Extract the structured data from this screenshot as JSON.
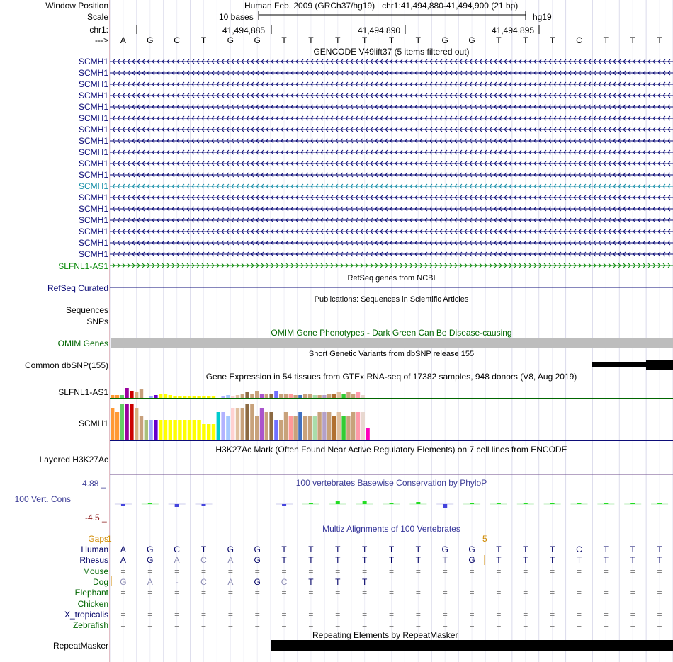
{
  "header": {
    "window_position_label": "Window Position",
    "assembly": "Human Feb. 2009 (GRCh37/hg19)",
    "position": "chr1:41,494,880-41,494,900 (21 bp)",
    "scale_label": "Scale",
    "scale_text": "10 bases",
    "scale_db": "hg19",
    "chrom_label": "chr1:",
    "ticks": [
      "41,494,885",
      "41,494,890",
      "41,494,895"
    ],
    "strand_label": "--->"
  },
  "bases": [
    "A",
    "G",
    "C",
    "T",
    "G",
    "G",
    "T",
    "T",
    "T",
    "T",
    "T",
    "T",
    "G",
    "G",
    "T",
    "T",
    "T",
    "C",
    "T",
    "T",
    "T"
  ],
  "gencode": {
    "title": "GENCODE V49lift37 (5 items filtered out)",
    "genes": [
      "SCMH1",
      "SCMH1",
      "SCMH1",
      "SCMH1",
      "SCMH1",
      "SCMH1",
      "SCMH1",
      "SCMH1",
      "SCMH1",
      "SCMH1",
      "SCMH1",
      "SCMH1",
      "SCMH1",
      "SCMH1",
      "SCMH1",
      "SCMH1",
      "SCMH1",
      "SCMH1"
    ],
    "antisense": "SLFNL1-AS1"
  },
  "refseq": {
    "title": "RefSeq genes from NCBI",
    "label": "RefSeq Curated"
  },
  "pubs": {
    "title": "Publications: Sequences in Scientific Articles",
    "seq_label": "Sequences",
    "snp_label": "SNPs"
  },
  "omim": {
    "title": "OMIM Gene Phenotypes - Dark Green Can Be Disease-causing",
    "label": "OMIM Genes"
  },
  "dbsnp": {
    "title": "Short Genetic Variants from dbSNP release 155",
    "label": "Common dbSNP(155)"
  },
  "gtex": {
    "title": "Gene Expression in 54 tissues from GTEx RNA-seq of 17382 samples, 948 donors (V8, Aug 2019)",
    "genes": [
      {
        "name": "SLFNL1-AS1",
        "values": [
          2,
          2,
          2,
          7,
          5,
          4,
          6,
          0,
          1,
          2,
          3,
          3,
          2,
          1,
          1,
          1,
          1,
          1,
          1,
          1,
          1,
          1,
          0,
          1,
          2,
          1,
          2,
          3,
          4,
          3,
          5,
          3,
          3,
          3,
          5,
          3,
          3,
          3,
          2,
          2,
          3,
          3,
          2,
          2,
          2,
          3,
          3,
          4,
          3,
          4,
          3,
          4,
          2,
          0
        ]
      },
      {
        "name": "SCMH1",
        "values": [
          8,
          7,
          9,
          9,
          9,
          8,
          6,
          5,
          5,
          5,
          5,
          5,
          5,
          5,
          5,
          5,
          5,
          5,
          5,
          4,
          4,
          4,
          7,
          7,
          6,
          8,
          8,
          8,
          9,
          9,
          6,
          8,
          7,
          7,
          5,
          5,
          7,
          6,
          6,
          7,
          6,
          6,
          6,
          7,
          7,
          7,
          6,
          7,
          6,
          6,
          7,
          7,
          7,
          3
        ]
      }
    ]
  },
  "h3k27ac": {
    "title": "H3K27Ac Mark (Often Found Near Active Regulatory Elements) on 7 cell lines from ENCODE",
    "label": "Layered H3K27Ac"
  },
  "cons": {
    "title": "100 vertebrates Basewise Conservation by PhyloP",
    "label": "100 Vert. Cons",
    "max": "4.88 _",
    "min": "-4.5 _",
    "values": [
      -0.3,
      0.1,
      -0.5,
      -0.4,
      0,
      0,
      -0.2,
      0.2,
      0.5,
      0.5,
      0.3,
      0.4,
      -0.6,
      0.2,
      0.3,
      0.3,
      0.3,
      0.2,
      0.1,
      0.2,
      0.2
    ]
  },
  "multiz": {
    "title": "Multiz Alignments of 100 Vertebrates",
    "gaps_label": "Gaps",
    "gaps_marks": [
      "1",
      "5"
    ],
    "species": [
      {
        "name": "Human",
        "color": "#000066",
        "seq": [
          "A",
          "G",
          "C",
          "T",
          "G",
          "G",
          "T",
          "T",
          "T",
          "T",
          "T",
          "T",
          "G",
          "G",
          "T",
          "T",
          "T",
          "C",
          "T",
          "T",
          "T"
        ]
      },
      {
        "name": "Rhesus",
        "color": "#000066",
        "seq": [
          "A",
          "G",
          "A",
          "C",
          "A",
          "G",
          "T",
          "T",
          "T",
          "T",
          "T",
          "T",
          "T",
          "G",
          "T",
          "T",
          "T",
          "T",
          "T",
          "T",
          "T"
        ]
      },
      {
        "name": "Mouse",
        "color": "#006600",
        "seq": [
          "=",
          "=",
          "=",
          "=",
          "=",
          "=",
          "=",
          "=",
          "=",
          "=",
          "=",
          "=",
          "=",
          "=",
          "=",
          "=",
          "=",
          "=",
          "=",
          "=",
          "="
        ]
      },
      {
        "name": "Dog",
        "color": "#006600",
        "seq": [
          "G",
          "A",
          "-",
          "C",
          "A",
          "G",
          "C",
          "T",
          "T",
          "T",
          "=",
          "=",
          "=",
          "=",
          "=",
          "=",
          "=",
          "=",
          "=",
          "=",
          "="
        ]
      },
      {
        "name": "Elephant",
        "color": "#006600",
        "seq": [
          "=",
          "=",
          "=",
          "=",
          "=",
          "=",
          "=",
          "=",
          "=",
          "=",
          "=",
          "=",
          "=",
          "=",
          "=",
          "=",
          "=",
          "=",
          "=",
          "=",
          "="
        ]
      },
      {
        "name": "Chicken",
        "color": "#006600",
        "seq": [
          "",
          "",
          "",
          "",
          "",
          "",
          "",
          "",
          "",
          "",
          "",
          "",
          "",
          "",
          "",
          "",
          "",
          "",
          "",
          "",
          ""
        ]
      },
      {
        "name": "X_tropicalis",
        "color": "#000066",
        "seq": [
          "=",
          "=",
          "=",
          "=",
          "=",
          "=",
          "=",
          "=",
          "=",
          "=",
          "=",
          "=",
          "=",
          "=",
          "=",
          "=",
          "=",
          "=",
          "=",
          "=",
          "="
        ]
      },
      {
        "name": "Zebrafish",
        "color": "#006600",
        "seq": [
          "=",
          "=",
          "=",
          "=",
          "=",
          "=",
          "=",
          "=",
          "=",
          "=",
          "=",
          "=",
          "=",
          "=",
          "=",
          "=",
          "=",
          "=",
          "=",
          "=",
          "="
        ]
      }
    ]
  },
  "repeatmasker": {
    "title": "Repeating Elements by RepeatMasker",
    "label": "RepeatMasker"
  },
  "colors": {
    "gene_blue": "#0c0c78",
    "gene_teal": "#168ea8",
    "antisense_green": "#0a8a0a",
    "refseq_navy": "#0c0c78",
    "omim_green": "#006600",
    "multiz_blue": "#333399",
    "cons_blue": "#3c3c96",
    "gaps_orange": "#d08a00",
    "base_line": "#dcdcec",
    "red_guide": "#e8a0a0"
  }
}
